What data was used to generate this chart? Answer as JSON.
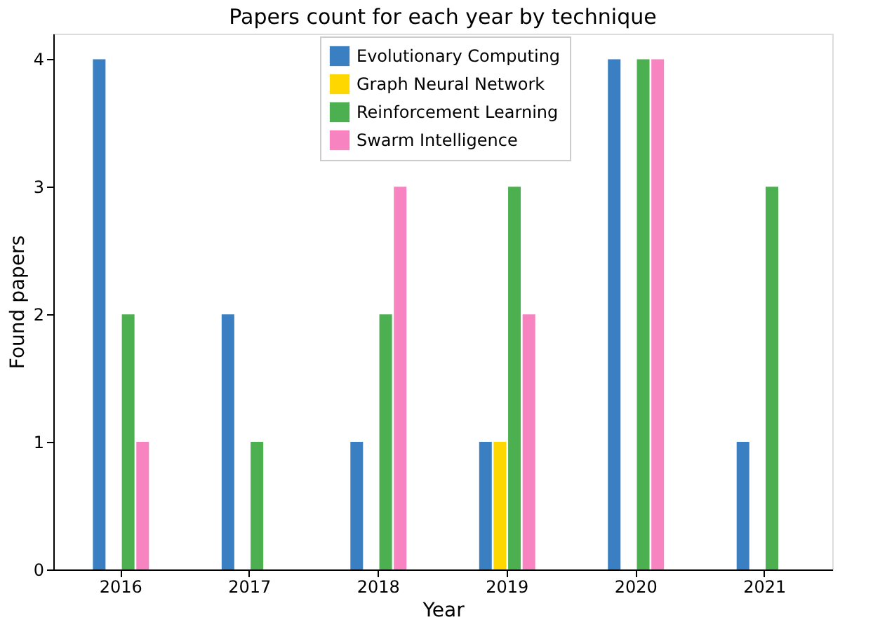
{
  "chart_data": {
    "type": "bar",
    "title": "Papers count for each year by technique",
    "xlabel": "Year",
    "ylabel": "Found papers",
    "categories": [
      "2016",
      "2017",
      "2018",
      "2019",
      "2020",
      "2021"
    ],
    "series": [
      {
        "name": "Evolutionary Computing",
        "color": "#3a7fc1",
        "values": [
          4,
          2,
          1,
          1,
          4,
          1
        ]
      },
      {
        "name": "Graph Neural Network",
        "color": "#ffd700",
        "values": [
          0,
          0,
          0,
          1,
          0,
          0
        ]
      },
      {
        "name": "Reinforcement Learning",
        "color": "#4caf50",
        "values": [
          2,
          1,
          2,
          3,
          4,
          3
        ]
      },
      {
        "name": "Swarm Intelligence",
        "color": "#f784c1",
        "values": [
          1,
          0,
          3,
          2,
          4,
          0
        ]
      }
    ],
    "ylim": [
      0,
      4.2
    ],
    "yticks": [
      0,
      1,
      2,
      3,
      4
    ],
    "grid": false,
    "legend": "top"
  }
}
